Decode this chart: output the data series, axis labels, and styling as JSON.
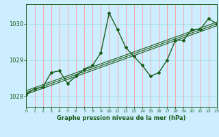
{
  "xlabel": "Graphe pression niveau de la mer (hPa)",
  "xlim": [
    0,
    23
  ],
  "ylim": [
    1027.7,
    1030.55
  ],
  "yticks": [
    1028,
    1029,
    1030
  ],
  "xticks": [
    0,
    1,
    2,
    3,
    4,
    5,
    6,
    7,
    8,
    9,
    10,
    11,
    12,
    13,
    14,
    15,
    16,
    17,
    18,
    19,
    20,
    21,
    22,
    23
  ],
  "bg_color": "#cceeff",
  "grid_color_v": "#ff9999",
  "grid_color_h": "#aadddd",
  "line_color": "#1a5c1a",
  "series": [
    [
      0,
      1028.05
    ],
    [
      1,
      1028.2
    ],
    [
      2,
      1028.25
    ],
    [
      3,
      1028.65
    ],
    [
      4,
      1028.7
    ],
    [
      5,
      1028.35
    ],
    [
      6,
      1028.55
    ],
    [
      7,
      1028.75
    ],
    [
      8,
      1028.85
    ],
    [
      9,
      1029.2
    ],
    [
      10,
      1030.3
    ],
    [
      11,
      1029.85
    ],
    [
      12,
      1029.35
    ],
    [
      13,
      1029.1
    ],
    [
      14,
      1028.85
    ],
    [
      15,
      1028.55
    ],
    [
      16,
      1028.65
    ],
    [
      17,
      1029.0
    ],
    [
      18,
      1029.55
    ],
    [
      19,
      1029.55
    ],
    [
      20,
      1029.85
    ],
    [
      21,
      1029.85
    ],
    [
      22,
      1030.15
    ],
    [
      23,
      1030.0
    ]
  ],
  "trend_lines": [
    {
      "x": [
        0,
        23
      ],
      "y": [
        1028.05,
        1029.95
      ]
    },
    {
      "x": [
        0,
        23
      ],
      "y": [
        1028.1,
        1030.0
      ]
    },
    {
      "x": [
        0,
        23
      ],
      "y": [
        1028.15,
        1030.05
      ]
    }
  ],
  "ytick_fontsize": 6,
  "xtick_fontsize": 4.5,
  "xlabel_fontsize": 6
}
